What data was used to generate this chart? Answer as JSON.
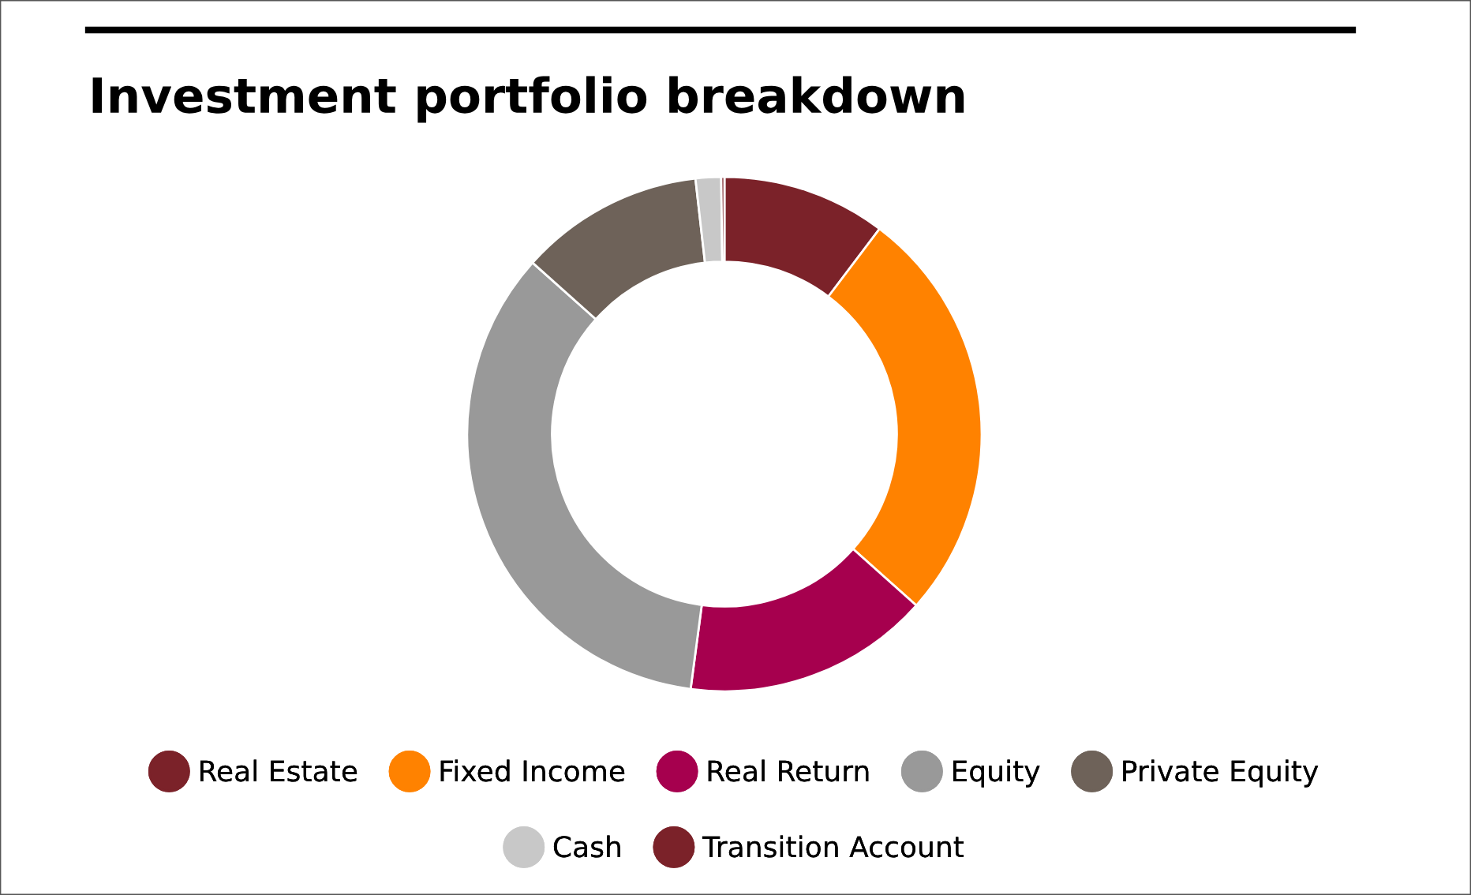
{
  "chart_data": {
    "type": "donut",
    "title": "Investment portfolio breakdown",
    "categories": [
      "Real Estate",
      "Fixed Income",
      "Real Return",
      "Equity",
      "Private Equity",
      "Cash",
      "Transition Account"
    ],
    "values": [
      10.3,
      26.3,
      15.5,
      34.5,
      11.6,
      1.6,
      0.2
    ],
    "colors": [
      "#7b2229",
      "#ff8200",
      "#a6004e",
      "#999999",
      "#6e6259",
      "#c8c8c8",
      "#7b2229"
    ],
    "legend": "bottom"
  }
}
